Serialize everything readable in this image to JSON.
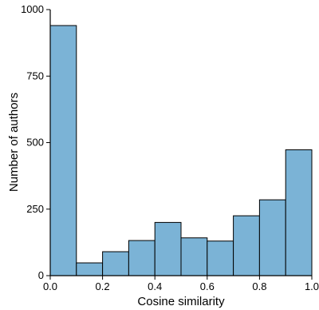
{
  "chart_data": {
    "type": "bar",
    "bins": [
      [
        0.0,
        0.1
      ],
      [
        0.1,
        0.2
      ],
      [
        0.2,
        0.3
      ],
      [
        0.3,
        0.4
      ],
      [
        0.4,
        0.5
      ],
      [
        0.5,
        0.6
      ],
      [
        0.6,
        0.7
      ],
      [
        0.7,
        0.8
      ],
      [
        0.8,
        0.9
      ],
      [
        0.9,
        1.0
      ]
    ],
    "values": [
      940,
      48,
      90,
      132,
      200,
      142,
      130,
      225,
      285,
      473
    ],
    "xlabel": "Cosine similarity",
    "ylabel": "Number of authors",
    "xlim": [
      0.0,
      1.0
    ],
    "ylim": [
      0,
      1000
    ],
    "xticks": [
      "0.0",
      "0.2",
      "0.4",
      "0.6",
      "0.8",
      "1.0"
    ],
    "yticks": [
      "0",
      "250",
      "500",
      "750",
      "1000"
    ],
    "grid": false,
    "legend": "none",
    "colors": {
      "bar_fill": "#7bb3d6",
      "bar_edge": "#000000",
      "axis": "#000000"
    }
  }
}
